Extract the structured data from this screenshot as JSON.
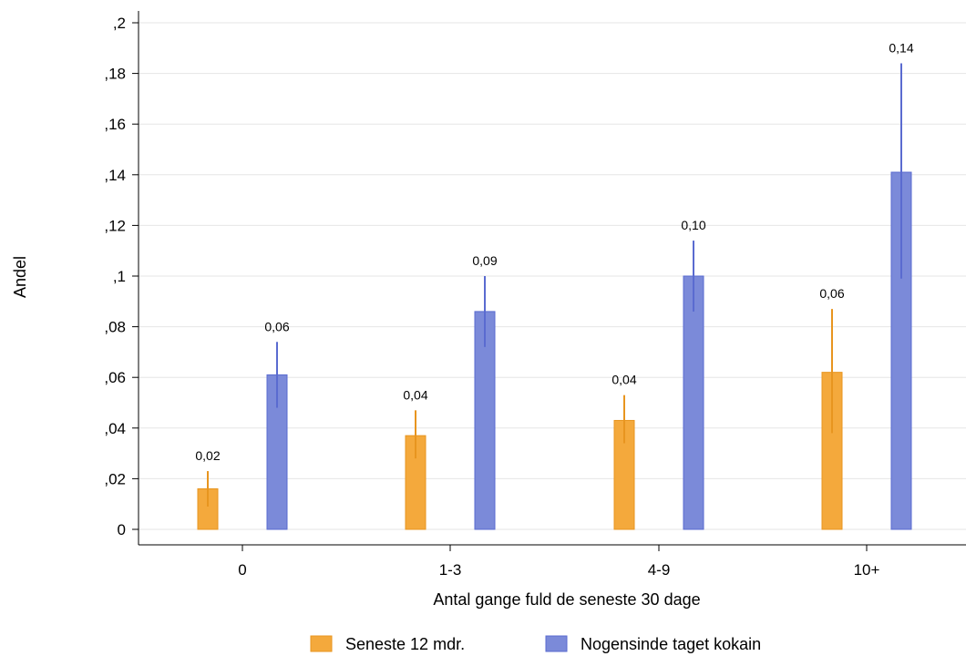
{
  "chart_data": {
    "type": "bar",
    "title": "",
    "xlabel": "Antal gange fuld de seneste 30 dage",
    "ylabel": "Andel",
    "categories": [
      "0",
      "1-3",
      "4-9",
      "10+"
    ],
    "ylim": [
      0,
      0.2
    ],
    "yticks": [
      {
        "value": 0,
        "label": "0"
      },
      {
        "value": 0.02,
        "label": ",02"
      },
      {
        "value": 0.04,
        "label": ",04"
      },
      {
        "value": 0.06,
        "label": ",06"
      },
      {
        "value": 0.08,
        "label": ",08"
      },
      {
        "value": 0.1,
        "label": ",1"
      },
      {
        "value": 0.12,
        "label": ",12"
      },
      {
        "value": 0.14,
        "label": ",14"
      },
      {
        "value": 0.16,
        "label": ",16"
      },
      {
        "value": 0.18,
        "label": ",18"
      },
      {
        "value": 0.2,
        "label": ",2"
      }
    ],
    "grid": true,
    "legend_position": "bottom",
    "series": [
      {
        "name": "Seneste 12 mdr.",
        "color": "#f4a93c",
        "edge_color": "#e8951f",
        "values": [
          0.016,
          0.037,
          0.043,
          0.062
        ],
        "ci_low": [
          0.009,
          0.028,
          0.034,
          0.038
        ],
        "ci_high": [
          0.023,
          0.047,
          0.053,
          0.087
        ],
        "labels": [
          "0,02",
          "0,04",
          "0,04",
          "0,06"
        ]
      },
      {
        "name": "Nogensinde taget kokain",
        "color": "#7b8ad9",
        "edge_color": "#5a6bd0",
        "values": [
          0.061,
          0.086,
          0.1,
          0.141
        ],
        "ci_low": [
          0.048,
          0.072,
          0.086,
          0.099
        ],
        "ci_high": [
          0.074,
          0.1,
          0.114,
          0.184
        ],
        "labels": [
          "0,06",
          "0,09",
          "0,10",
          "0,14"
        ]
      }
    ]
  }
}
